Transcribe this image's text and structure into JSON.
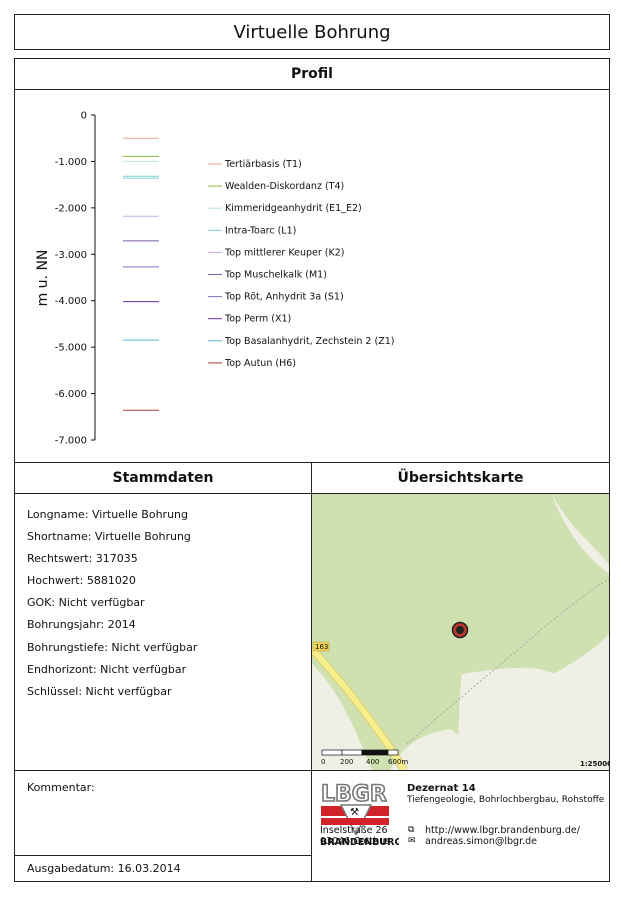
{
  "title": "Virtuelle Bohrung",
  "profil": {
    "heading": "Profil",
    "y_axis_label": "m u. NN"
  },
  "chart_data": {
    "type": "line",
    "title": "",
    "ylabel": "m u. NN",
    "ylim": [
      -7000,
      0
    ],
    "yticks": [
      0,
      -1000,
      -2000,
      -3000,
      -4000,
      -5000,
      -6000,
      -7000
    ],
    "ytick_labels": [
      "0",
      "-1.000",
      "-2.000",
      "-3.000",
      "-4.000",
      "-5.000",
      "-6.000",
      "-7.000"
    ],
    "series": [
      {
        "name": "Tertiärbasis (T1)",
        "value": -500,
        "color": "#e8a58e"
      },
      {
        "name": "Wealden-Diskordanz (T4)",
        "value": -890,
        "color": "#8ab83a"
      },
      {
        "name": "Kimmeridgeanhydrit (E1_E2)",
        "value": -1000,
        "color": "#b7e4dc"
      },
      {
        "name": "Intra-Toarc (L1)",
        "value": -1360,
        "color": "#7dcfd3"
      },
      {
        "name": "Top mittlerer Keuper (K2)",
        "value": -2180,
        "color": "#c6a8e3"
      },
      {
        "name": "Top Muschelkalk (M1)",
        "value": -2710,
        "color": "#7b5aa8"
      },
      {
        "name": "Top Röt, Anhydrit 3a (S1)",
        "value": -3270,
        "color": "#8a6fc0"
      },
      {
        "name": "Top Perm (X1)",
        "value": -4020,
        "color": "#6b2fa5"
      },
      {
        "name": "Top Basalanhydrit, Zechstein 2 (Z1)",
        "value": -4850,
        "color": "#53b6d8"
      },
      {
        "name": "Top Autun (H6)",
        "value": -6360,
        "color": "#b03a2e"
      }
    ],
    "extra_lines": [
      {
        "value": -1320,
        "color": "#7dcfd3"
      }
    ]
  },
  "stammdaten": {
    "heading": "Stammdaten",
    "rows": [
      "Longname: Virtuelle Bohrung",
      "Shortname: Virtuelle Bohrung",
      "Rechtswert: 317035",
      "Hochwert: 5881020",
      "GOK: Nicht verfügbar",
      "Bohrungsjahr: 2014",
      "Bohrungstiefe: Nicht verfügbar",
      "Endhorizont: Nicht verfügbar",
      "Schlüssel: Nicht verfügbar"
    ]
  },
  "karte": {
    "heading": "Übersichtskarte",
    "road_label": "163",
    "scale_labels": [
      "0",
      "200",
      "400",
      "600m"
    ],
    "scale_ratio": "1:25000",
    "colors": {
      "forest": "#cfe1b0",
      "open": "#efefe6",
      "road": "#f6ee8d",
      "marker": "#b5382c"
    }
  },
  "kommentar": {
    "label": "Kommentar:"
  },
  "ausgabedatum": "Ausgabedatum: 16.03.2014",
  "lbgr": {
    "logo_text": "LBGR",
    "logo_sub": "BRANDENBURG",
    "dezernat": "Dezernat 14",
    "dezernat_sub": "Tiefengeologie, Bohrlochbergbau, Rohstoffe",
    "address_line1": "Inselstraße 26",
    "address_line2": "03046 Cottbus",
    "url": "http://www.lbgr.brandenburg.de/",
    "email": "andreas.simon@lbgr.de",
    "url_icon": "link-icon",
    "email_icon": "mail-icon",
    "colors": {
      "red": "#d2232a",
      "gray": "#777777"
    }
  }
}
